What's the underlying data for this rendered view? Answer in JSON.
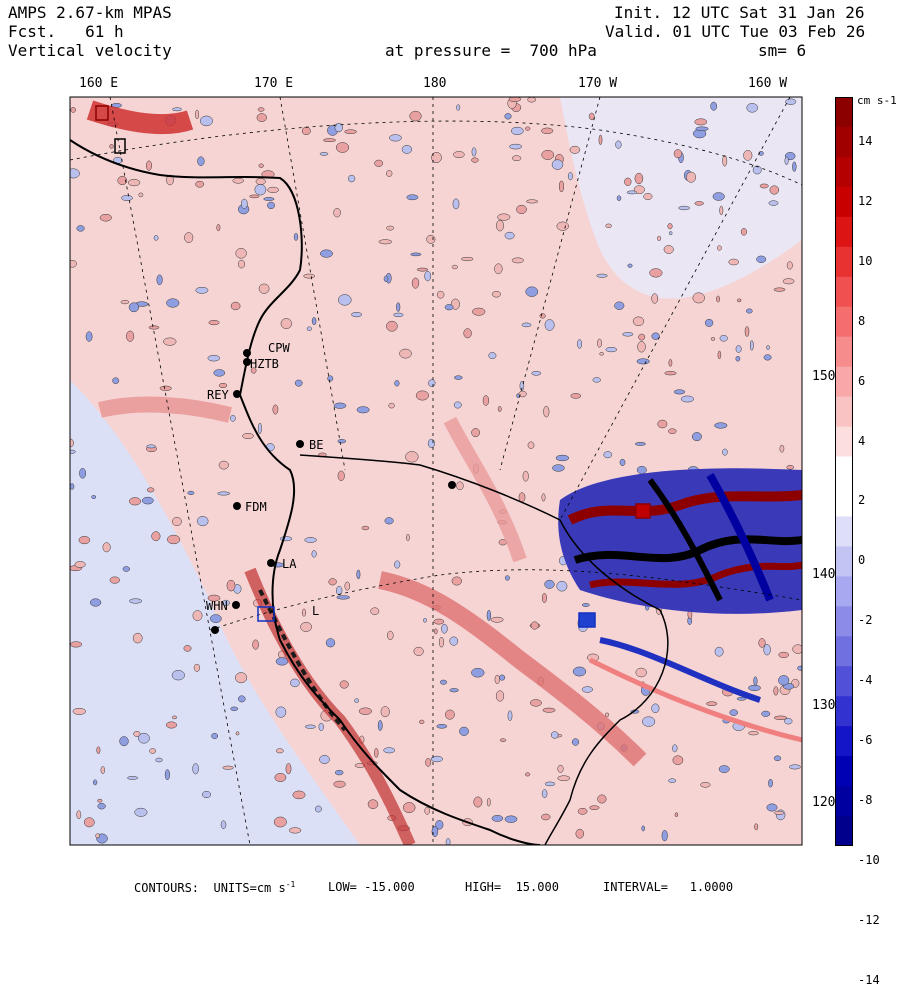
{
  "header": {
    "model": "AMPS 2.67-km MPAS",
    "fcst": "Fcst.   61 h",
    "field": "Vertical velocity",
    "init": "Init. 12 UTC Sat 31 Jan 26",
    "valid": "Valid. 01 UTC Tue 03 Feb 26",
    "pressure": "at pressure =  700 hPa",
    "smoothing": "sm= 6"
  },
  "longitude_labels": [
    "160 E",
    "170 E",
    "180",
    "170 W",
    "160 W"
  ],
  "latitude_labels": [
    "150 W",
    "140 W",
    "130 W",
    "120 W"
  ],
  "stations": [
    "CPW",
    "HZTB",
    "REY",
    "BE",
    "FDM",
    "LA",
    "WHN",
    "L"
  ],
  "colorbar": {
    "unit": "cm s-1",
    "ticks": [
      "14",
      "12",
      "10",
      "8",
      "6",
      "4",
      "2",
      "0",
      "-2",
      "-4",
      "-6",
      "-8",
      "-10",
      "-12",
      "-14"
    ],
    "colors": [
      "#8c0000",
      "#a00000",
      "#b40000",
      "#c80000",
      "#dc1414",
      "#e83232",
      "#f05050",
      "#f46e6e",
      "#f68c8c",
      "#f8a8a8",
      "#fac3c3",
      "#fcdede",
      "#ffffff",
      "#ffffff",
      "#dedef8",
      "#c4c4f4",
      "#a8a8f0",
      "#8c8ce8",
      "#7070e0",
      "#5050d8",
      "#3232d0",
      "#1414c8",
      "#0000b4",
      "#0000a0",
      "#00008c"
    ]
  },
  "footer": {
    "contours": "CONTOURS:  UNITS=cm s",
    "units_exp": "-1",
    "low": "LOW= -15.000",
    "high": "HIGH=  15.000",
    "interval": "INTERVAL=   1.0000"
  },
  "colors": {
    "pink": "#f6d4d4",
    "blue": "#dce0f6",
    "red": "#d95050",
    "navy": "#1030c0"
  }
}
